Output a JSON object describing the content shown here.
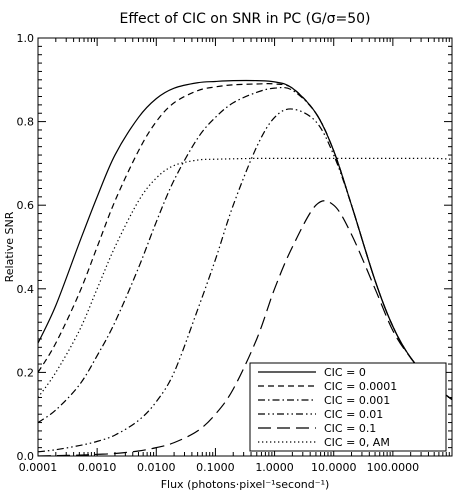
{
  "chart_data": {
    "type": "line",
    "title": "Effect of CIC on SNR in PC (G/σ=50)",
    "ylabel": "Relative SNR",
    "xlabel": "Flux (photons·pixel⁻¹second⁻¹)",
    "xscale": "log",
    "xlim": [
      0.0001,
      1000
    ],
    "ylim": [
      0.0,
      1.0
    ],
    "x_ticks": [
      0.0001,
      0.001,
      0.01,
      0.1,
      1,
      10,
      100
    ],
    "x_tick_labels": [
      "0.0001",
      "0.0010",
      "0.0100",
      "0.1000",
      "1.0000",
      "10.0000",
      "100.0000"
    ],
    "y_ticks": [
      0.0,
      0.2,
      0.4,
      0.6,
      0.8,
      1.0
    ],
    "y_tick_labels": [
      "0.0",
      "0.2",
      "0.4",
      "0.6",
      "0.8",
      "1.0"
    ],
    "grid": false,
    "legend_position": "bottom-right",
    "series": [
      {
        "name": "CIC = 0",
        "dash": "solid",
        "x": [
          0.0001,
          0.0002,
          0.0005,
          0.001,
          0.002,
          0.005,
          0.01,
          0.02,
          0.05,
          0.1,
          0.2,
          0.5,
          1,
          2,
          5,
          10,
          20,
          50,
          100,
          200,
          500,
          1000
        ],
        "y": [
          0.27,
          0.36,
          0.51,
          0.62,
          0.72,
          0.81,
          0.855,
          0.88,
          0.893,
          0.896,
          0.898,
          0.898,
          0.895,
          0.88,
          0.82,
          0.73,
          0.6,
          0.42,
          0.31,
          0.235,
          0.17,
          0.135
        ]
      },
      {
        "name": "CIC = 0.0001",
        "dash": "dashed",
        "x": [
          0.0001,
          0.0002,
          0.0005,
          0.001,
          0.002,
          0.005,
          0.01,
          0.02,
          0.05,
          0.1,
          0.2,
          0.5,
          1,
          2,
          5,
          10,
          20,
          50,
          100,
          200,
          500,
          1000
        ],
        "y": [
          0.2,
          0.27,
          0.39,
          0.5,
          0.61,
          0.73,
          0.8,
          0.845,
          0.874,
          0.883,
          0.888,
          0.89,
          0.89,
          0.88,
          0.82,
          0.73,
          0.6,
          0.42,
          0.31,
          0.235,
          0.17,
          0.135
        ]
      },
      {
        "name": "CIC = 0.001",
        "dash": "dashdot",
        "x": [
          0.0001,
          0.0002,
          0.0005,
          0.001,
          0.002,
          0.005,
          0.01,
          0.02,
          0.05,
          0.1,
          0.2,
          0.5,
          1,
          2,
          5,
          10,
          20,
          50,
          100,
          200,
          500,
          1000
        ],
        "y": [
          0.08,
          0.11,
          0.17,
          0.24,
          0.32,
          0.45,
          0.56,
          0.66,
          0.76,
          0.81,
          0.845,
          0.87,
          0.88,
          0.875,
          0.82,
          0.73,
          0.6,
          0.42,
          0.31,
          0.235,
          0.17,
          0.135
        ]
      },
      {
        "name": "CIC = 0.01",
        "dash": "dashdotdot",
        "x": [
          0.0001,
          0.0002,
          0.0005,
          0.001,
          0.002,
          0.005,
          0.01,
          0.02,
          0.05,
          0.1,
          0.2,
          0.5,
          1,
          2,
          5,
          10,
          20,
          50,
          100,
          200,
          500,
          1000
        ],
        "y": [
          0.01,
          0.015,
          0.025,
          0.035,
          0.05,
          0.085,
          0.13,
          0.2,
          0.35,
          0.47,
          0.6,
          0.74,
          0.81,
          0.83,
          0.8,
          0.72,
          0.6,
          0.42,
          0.31,
          0.235,
          0.17,
          0.135
        ]
      },
      {
        "name": "CIC = 0.1",
        "dash": "longdash",
        "x": [
          0.0001,
          0.0002,
          0.0005,
          0.001,
          0.002,
          0.005,
          0.01,
          0.02,
          0.05,
          0.1,
          0.2,
          0.5,
          1,
          2,
          5,
          10,
          20,
          50,
          100,
          200,
          500,
          1000
        ],
        "y": [
          0.0,
          0.001,
          0.002,
          0.004,
          0.006,
          0.012,
          0.02,
          0.032,
          0.06,
          0.1,
          0.16,
          0.28,
          0.4,
          0.5,
          0.6,
          0.6,
          0.53,
          0.4,
          0.3,
          0.235,
          0.17,
          0.135
        ]
      },
      {
        "name": "CIC = 0, AM",
        "dash": "dotted",
        "x": [
          0.0001,
          0.0002,
          0.0005,
          0.001,
          0.002,
          0.005,
          0.01,
          0.02,
          0.05,
          0.1,
          0.2,
          0.5,
          1,
          2,
          5,
          10,
          20,
          50,
          100,
          200,
          500,
          1000
        ],
        "y": [
          0.14,
          0.2,
          0.3,
          0.4,
          0.5,
          0.61,
          0.665,
          0.695,
          0.708,
          0.71,
          0.711,
          0.712,
          0.712,
          0.712,
          0.712,
          0.712,
          0.712,
          0.712,
          0.712,
          0.712,
          0.712,
          0.71
        ]
      }
    ]
  }
}
